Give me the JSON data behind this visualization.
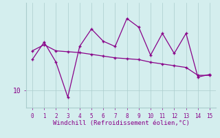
{
  "xlabel": "Windchill (Refroidissement éolien,°C)",
  "line1_x": [
    0,
    1,
    2,
    3,
    4,
    5,
    6,
    7,
    8,
    9,
    10,
    11,
    12,
    13,
    14,
    15
  ],
  "line1_y": [
    13.5,
    15.5,
    13.2,
    9.2,
    15.0,
    17.0,
    15.6,
    15.0,
    18.2,
    17.2,
    14.0,
    16.5,
    14.2,
    16.5,
    11.5,
    11.8
  ],
  "line2_x": [
    0,
    1,
    2,
    3,
    4,
    5,
    6,
    7,
    8,
    9,
    10,
    11,
    12,
    13,
    14,
    15
  ],
  "line2_y": [
    14.5,
    15.2,
    14.5,
    14.4,
    14.3,
    14.1,
    13.9,
    13.7,
    13.6,
    13.5,
    13.2,
    13.0,
    12.8,
    12.6,
    11.7,
    11.7
  ],
  "line_color": "#880088",
  "bg_color": "#d4eeee",
  "grid_color": "#aacccc",
  "tick_label_color": "#880088",
  "axis_label_color": "#880088",
  "ytick_value": 10.0,
  "ytick_label": "10",
  "xlim": [
    -0.5,
    15.5
  ],
  "ylim": [
    8.0,
    20.0
  ],
  "marker_size": 3.0,
  "linewidth": 0.9,
  "xlabel_fontsize": 6.5,
  "xtick_fontsize": 5.5,
  "ytick_fontsize": 7.0
}
